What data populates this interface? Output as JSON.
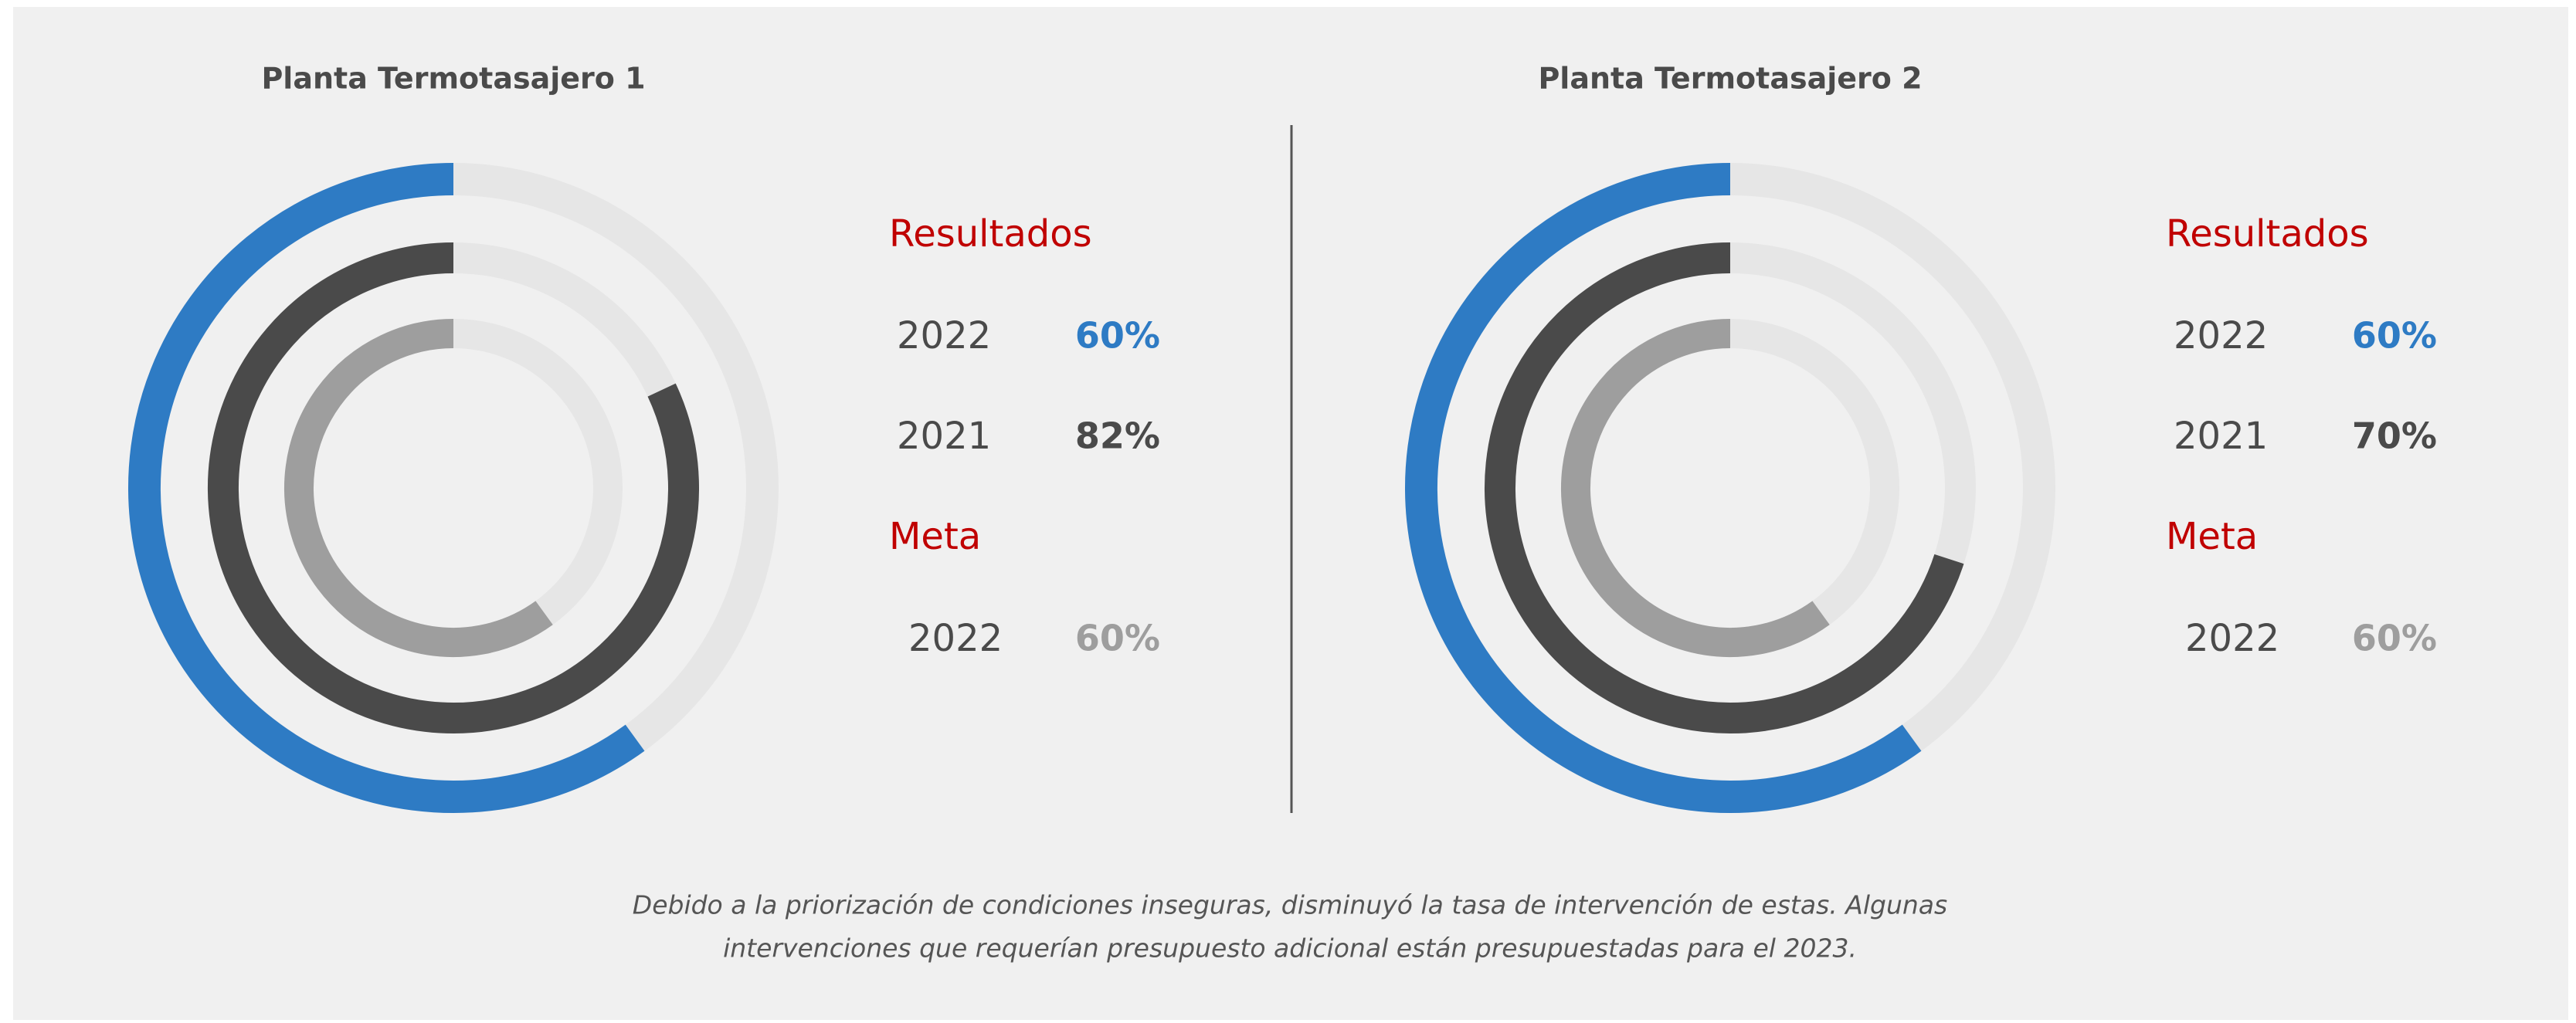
{
  "chart_data": [
    {
      "type": "radial_bar",
      "title": "Planta Termotasajero 1",
      "ylim": [
        0,
        100
      ],
      "track_color": "#e6e6e6",
      "groups": [
        {
          "label": "Resultados",
          "series": [
            {
              "name": "2022",
              "color": "#2e7bc4",
              "value": 60,
              "value_label": "60%"
            },
            {
              "name": "2021",
              "color": "#4a4a4a",
              "value": 82,
              "value_label": "82%"
            }
          ]
        },
        {
          "label": "Meta",
          "series": [
            {
              "name": "2022",
              "color": "#9e9e9e",
              "value": 60,
              "value_label": "60%"
            }
          ]
        }
      ]
    },
    {
      "type": "radial_bar",
      "title": "Planta Termotasajero 2",
      "ylim": [
        0,
        100
      ],
      "track_color": "#e6e6e6",
      "groups": [
        {
          "label": "Resultados",
          "series": [
            {
              "name": "2022",
              "color": "#2e7bc4",
              "value": 60,
              "value_label": "60%"
            },
            {
              "name": "2021",
              "color": "#4a4a4a",
              "value": 70,
              "value_label": "70%"
            }
          ]
        },
        {
          "label": "Meta",
          "series": [
            {
              "name": "2022",
              "color": "#9e9e9e",
              "value": 60,
              "value_label": "60%"
            }
          ]
        }
      ]
    }
  ],
  "caption": [
    "Debido a la priorización de condiciones inseguras, disminuyó la tasa de intervención de estas. Algunas",
    "intervenciones que requerían presupuesto adicional están presupuestadas para el 2023."
  ]
}
